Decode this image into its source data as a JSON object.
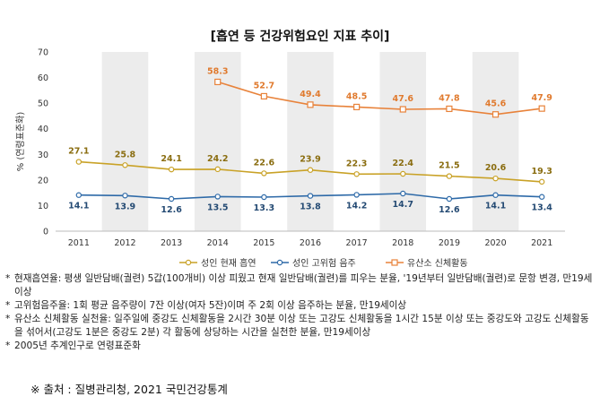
{
  "title": "[흡연 등 건강위험요인 지표 추이]",
  "chart_data": {
    "type": "line",
    "categories": [
      "2011",
      "2012",
      "2013",
      "2014",
      "2015",
      "2016",
      "2017",
      "2018",
      "2019",
      "2020",
      "2021"
    ],
    "ylabel": "% (연령표준화)",
    "ylim": [
      0,
      70
    ],
    "yticks": [
      0,
      10,
      20,
      30,
      40,
      50,
      60,
      70
    ],
    "grid": false,
    "alternating_column_shading": true,
    "legend_position": "bottom",
    "series": [
      {
        "name": "성인 현재 흡연",
        "color": "#c9a227",
        "marker": "circle",
        "values": [
          27.1,
          25.8,
          24.1,
          24.2,
          22.6,
          23.9,
          22.3,
          22.4,
          21.5,
          20.6,
          19.3
        ]
      },
      {
        "name": "성인 고위험 음주",
        "color": "#2e6aa8",
        "marker": "circle",
        "values": [
          14.1,
          13.9,
          12.6,
          13.5,
          13.3,
          13.8,
          14.2,
          14.7,
          12.6,
          14.1,
          13.4
        ]
      },
      {
        "name": "유산소 신체활동",
        "color": "#e8823a",
        "marker": "square",
        "values": [
          null,
          null,
          null,
          58.3,
          52.7,
          49.4,
          48.5,
          47.6,
          47.8,
          45.6,
          47.9
        ]
      }
    ]
  },
  "notes": [
    "현재흡연율: 평생 일반담배(궐련) 5갑(100개비) 이상 피웠고 현재 일반담배(궐련)를 피우는 분율, '19년부터 일반담배(궐련)로 문항 변경, 만19세이상",
    "고위험음주율: 1회 평균 음주량이 7잔 이상(여자 5잔)이며 주 2회 이상 음주하는 분율, 만19세이상",
    "유산소 신체활동 실천율: 일주일에 중강도 신체활동을 2시간 30분 이상 또는 고강도 신체활동을 1시간 15분 이상 또는 중강도와 고강도 신체활동을 섞어서(고강도 1분은 중강도 2분) 각 활동에 상당하는 시간을 실천한 분율, 만19세이상",
    "2005년 추계인구로 연령표준화"
  ],
  "note_bullet": "*",
  "source": "※ 출처 : 질병관리청, 2021 국민건강통계"
}
